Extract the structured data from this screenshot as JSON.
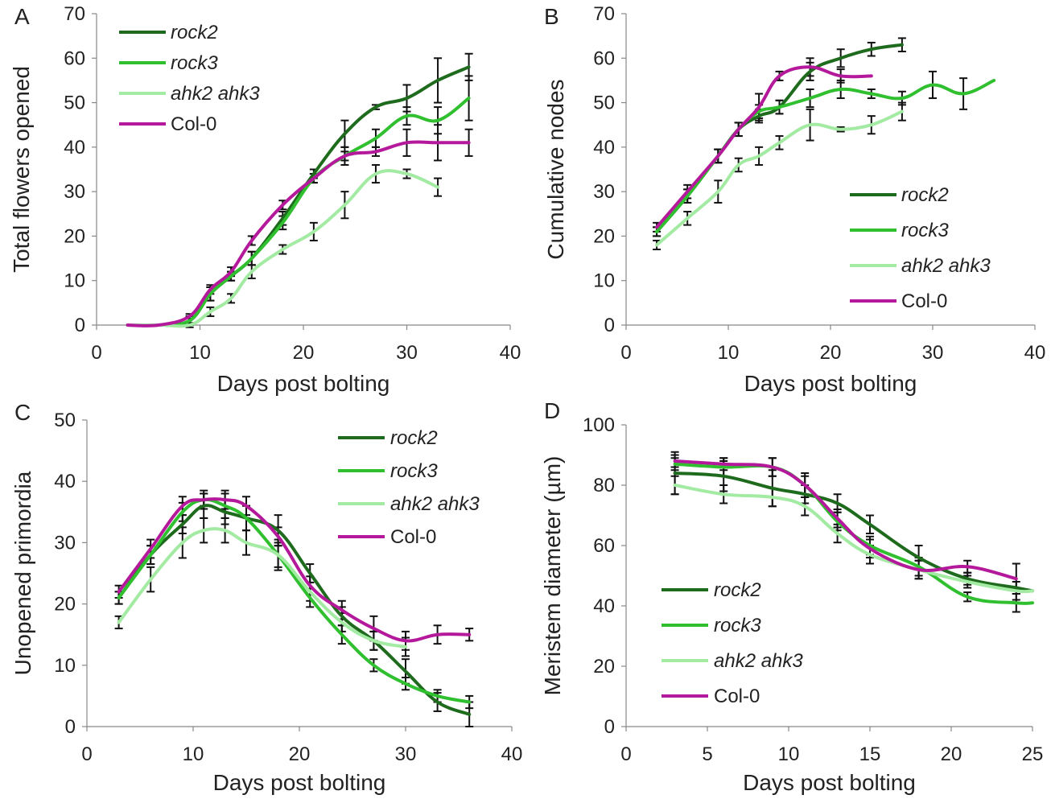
{
  "chart_data": [
    {
      "panel": "A",
      "type": "line",
      "xlabel": "Days post bolting",
      "ylabel": "Total  flowers opened",
      "xlim": [
        0,
        40
      ],
      "ylim": [
        0,
        70
      ],
      "xticks": [
        0,
        10,
        20,
        30,
        40
      ],
      "yticks": [
        0,
        10,
        20,
        30,
        40,
        50,
        60,
        70
      ],
      "legend_position": "top-left",
      "series": [
        {
          "name": "rock2",
          "italic": true,
          "color": "#1e6b1e",
          "x": [
            3,
            6,
            9,
            11,
            13,
            15,
            18,
            21,
            24,
            27,
            30,
            33,
            36
          ],
          "y": [
            0,
            0,
            1,
            7,
            11,
            15,
            24,
            34,
            43,
            49,
            51,
            55,
            58
          ],
          "err": [
            0,
            0,
            1,
            1.5,
            1,
            1.5,
            1.5,
            1,
            3,
            0.5,
            3,
            5,
            3
          ]
        },
        {
          "name": "rock3",
          "italic": true,
          "color": "#2fbf2f",
          "x": [
            3,
            6,
            9,
            11,
            13,
            15,
            18,
            21,
            24,
            27,
            30,
            33,
            36
          ],
          "y": [
            0,
            0,
            1,
            7,
            11,
            15,
            23,
            33,
            38,
            42,
            47,
            46,
            51
          ],
          "err": [
            0,
            0,
            1,
            1.5,
            1,
            1.5,
            1.5,
            1,
            2,
            2,
            2,
            3,
            5
          ]
        },
        {
          "name": "ahk2 ahk3",
          "italic": true,
          "color": "#a3eaa3",
          "x": [
            3,
            6,
            9,
            11,
            13,
            15,
            18,
            21,
            24,
            27,
            30,
            33
          ],
          "y": [
            0,
            0,
            0,
            3,
            6,
            12,
            17,
            21,
            27,
            34,
            34,
            31
          ],
          "err": [
            0,
            0,
            0.5,
            1,
            1,
            1.5,
            1,
            2,
            3,
            2,
            1,
            2
          ]
        },
        {
          "name": "Col-0",
          "italic": false,
          "color": "#b5199b",
          "x": [
            3,
            6,
            9,
            11,
            13,
            15,
            18,
            21,
            24,
            27,
            30,
            33,
            36
          ],
          "y": [
            0,
            0,
            2,
            8,
            12,
            19,
            27,
            33,
            38,
            39,
            41,
            41,
            41
          ],
          "err": [
            0,
            0,
            0.5,
            1,
            1,
            1,
            1,
            1,
            1,
            1,
            3,
            4,
            3
          ]
        }
      ]
    },
    {
      "panel": "B",
      "type": "line",
      "xlabel": "Days post bolting",
      "ylabel": "Cumulative nodes",
      "xlim": [
        0,
        40
      ],
      "ylim": [
        0,
        70
      ],
      "xticks": [
        0,
        10,
        20,
        30,
        40
      ],
      "yticks": [
        0,
        10,
        20,
        30,
        40,
        50,
        60,
        70
      ],
      "legend_position": "bottom-right",
      "series": [
        {
          "name": "rock2",
          "italic": true,
          "color": "#1e6b1e",
          "x": [
            3,
            6,
            9,
            11,
            13,
            15,
            18,
            21,
            24,
            27
          ],
          "y": [
            21,
            29,
            38,
            44,
            47,
            49,
            57,
            60,
            62,
            63
          ],
          "err": [
            1,
            1.5,
            1.5,
            1.5,
            1.5,
            1.5,
            2,
            2,
            1.5,
            1.5
          ]
        },
        {
          "name": "rock3",
          "italic": true,
          "color": "#2fbf2f",
          "x": [
            3,
            6,
            9,
            11,
            13,
            15,
            18,
            21,
            24,
            27,
            30,
            33,
            36
          ],
          "y": [
            21,
            29,
            38,
            44,
            48,
            49,
            51,
            53,
            52,
            51,
            54,
            52,
            55
          ],
          "err": [
            1,
            1.5,
            1.5,
            1.5,
            1.5,
            1.5,
            2,
            2,
            1,
            1.5,
            3,
            3.5,
            0
          ]
        },
        {
          "name": "ahk2 ahk3",
          "italic": true,
          "color": "#a3eaa3",
          "x": [
            3,
            6,
            9,
            11,
            13,
            15,
            18,
            21,
            24,
            27
          ],
          "y": [
            18,
            24,
            30,
            36,
            38,
            41,
            45,
            44,
            45,
            48
          ],
          "err": [
            1,
            1.5,
            2.5,
            1.5,
            2,
            1.5,
            3.5,
            0.5,
            2,
            2
          ]
        },
        {
          "name": "Col-0",
          "italic": false,
          "color": "#b5199b",
          "x": [
            3,
            6,
            9,
            11,
            13,
            15,
            18,
            21,
            24
          ],
          "y": [
            22,
            30,
            38,
            44,
            49,
            56,
            58,
            56,
            56
          ],
          "err": [
            1,
            1.5,
            1.5,
            1.5,
            3,
            1,
            2,
            1.5,
            0
          ]
        }
      ]
    },
    {
      "panel": "C",
      "type": "line",
      "xlabel": "Days post bolting",
      "ylabel": "Unopened primordia",
      "xlim": [
        0,
        40
      ],
      "ylim": [
        0,
        50
      ],
      "xticks": [
        0,
        10,
        20,
        30,
        40
      ],
      "yticks": [
        0,
        10,
        20,
        30,
        40,
        50
      ],
      "legend_position": "top-right",
      "series": [
        {
          "name": "rock2",
          "italic": true,
          "color": "#1e6b1e",
          "x": [
            3,
            6,
            9,
            11,
            13,
            15,
            18,
            21,
            24,
            27,
            30,
            33,
            36
          ],
          "y": [
            21,
            28,
            33,
            36,
            35,
            34,
            32,
            25,
            18,
            14,
            9,
            4,
            2
          ],
          "err": [
            1,
            1.5,
            1.5,
            2,
            2,
            2,
            2.5,
            1.5,
            1.5,
            1.5,
            2,
            1.5,
            2
          ]
        },
        {
          "name": "rock3",
          "italic": true,
          "color": "#2fbf2f",
          "x": [
            3,
            6,
            9,
            11,
            13,
            15,
            18,
            21,
            24,
            27,
            30,
            33,
            36
          ],
          "y": [
            21,
            28,
            35,
            37,
            36,
            34,
            28,
            21,
            15,
            10,
            7,
            5,
            4
          ],
          "err": [
            1,
            1.5,
            1.5,
            1,
            2,
            2,
            2.5,
            1.5,
            1.5,
            1,
            1,
            1,
            1
          ]
        },
        {
          "name": "ahk2 ahk3",
          "italic": true,
          "color": "#a3eaa3",
          "x": [
            3,
            6,
            9,
            11,
            13,
            15,
            18,
            21,
            24,
            27,
            30
          ],
          "y": [
            17,
            24,
            30,
            32,
            32,
            30,
            28,
            22,
            17,
            14,
            13
          ],
          "err": [
            1,
            2,
            2.5,
            2,
            2,
            2,
            2,
            1.5,
            1.5,
            1.5,
            1.5
          ]
        },
        {
          "name": "Col-0",
          "italic": false,
          "color": "#b5199b",
          "x": [
            3,
            6,
            9,
            11,
            13,
            15,
            18,
            21,
            24,
            27,
            30,
            33,
            36
          ],
          "y": [
            22,
            29,
            36,
            37,
            37,
            36,
            31,
            23,
            19,
            16,
            14,
            15,
            15
          ],
          "err": [
            1,
            1.5,
            1.5,
            1.5,
            1.5,
            1.5,
            1.5,
            1.5,
            1.5,
            2,
            1.5,
            1.5,
            1
          ]
        }
      ]
    },
    {
      "panel": "D",
      "type": "line",
      "xlabel": "Days post bolting",
      "ylabel": "Meristem diameter (µm)",
      "xlim": [
        0,
        25
      ],
      "ylim": [
        0,
        100
      ],
      "xticks": [
        0,
        5,
        10,
        15,
        20,
        25
      ],
      "yticks": [
        0,
        20,
        40,
        60,
        80,
        100
      ],
      "legend_position": "bottom-left",
      "series": [
        {
          "name": "rock2",
          "italic": true,
          "color": "#1e6b1e",
          "x": [
            3,
            6,
            9,
            11,
            13,
            15,
            18,
            21,
            24,
            25
          ],
          "y": [
            84,
            83,
            79,
            77,
            74,
            67,
            56,
            49,
            46,
            45
          ],
          "err": [
            7,
            5,
            6,
            3,
            3,
            3,
            4,
            2,
            0,
            0
          ]
        },
        {
          "name": "rock3",
          "italic": true,
          "color": "#2fbf2f",
          "x": [
            3,
            6,
            9,
            11,
            13,
            15,
            18,
            21,
            24,
            25
          ],
          "y": [
            87,
            86,
            86,
            80,
            68,
            60,
            53,
            43,
            41,
            41
          ],
          "err": [
            2,
            3,
            3,
            3,
            3,
            3,
            3,
            1.5,
            3,
            0
          ]
        },
        {
          "name": "ahk2 ahk3",
          "italic": true,
          "color": "#a3eaa3",
          "x": [
            3,
            6,
            9,
            11,
            13,
            15,
            18,
            21,
            24,
            25
          ],
          "y": [
            80,
            77,
            76,
            73,
            64,
            57,
            52,
            48,
            45,
            45
          ],
          "err": [
            3,
            3,
            3,
            3,
            3,
            3,
            3,
            2,
            3,
            0
          ]
        },
        {
          "name": "Col-0",
          "italic": false,
          "color": "#b5199b",
          "x": [
            3,
            6,
            9,
            11,
            13,
            15,
            18,
            21,
            24
          ],
          "y": [
            88,
            87,
            86,
            80,
            69,
            59,
            52,
            53,
            49
          ],
          "err": [
            2,
            2,
            3,
            4,
            3,
            3,
            3,
            2,
            5
          ]
        }
      ]
    }
  ]
}
